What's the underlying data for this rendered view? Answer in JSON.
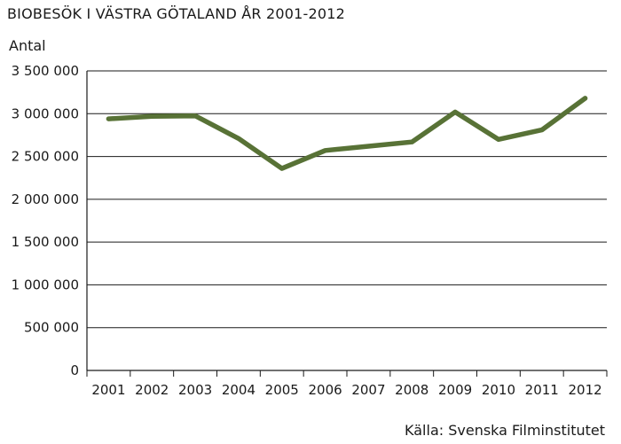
{
  "chart_data": {
    "type": "line",
    "title": "BIOBESÖK I VÄSTRA GÖTALAND ÅR 2001-2012",
    "ylabel": "Antal",
    "xlabel": "",
    "source": "Källa: Svenska Filminstitutet",
    "x": [
      "2001",
      "2002",
      "2003",
      "2004",
      "2005",
      "2006",
      "2007",
      "2008",
      "2009",
      "2010",
      "2011",
      "2012"
    ],
    "series": [
      {
        "values": [
          2940000,
          2970000,
          2975000,
          2710000,
          2360000,
          2570000,
          2620000,
          2670000,
          3020000,
          2700000,
          2810000,
          3180000
        ]
      }
    ],
    "ylim": [
      0,
      3500000
    ],
    "yticks": [
      {
        "value": 0,
        "label": "0"
      },
      {
        "value": 500000,
        "label": "500 000"
      },
      {
        "value": 1000000,
        "label": "1 000 000"
      },
      {
        "value": 1500000,
        "label": "1 500 000"
      },
      {
        "value": 2000000,
        "label": "2 000 000"
      },
      {
        "value": 2500000,
        "label": "2 500 000"
      },
      {
        "value": 3000000,
        "label": "3 000 000"
      },
      {
        "value": 3500000,
        "label": "3 500 000"
      }
    ],
    "grid": true,
    "line_color": "#587236",
    "grid_color": "#1a1a1a"
  }
}
